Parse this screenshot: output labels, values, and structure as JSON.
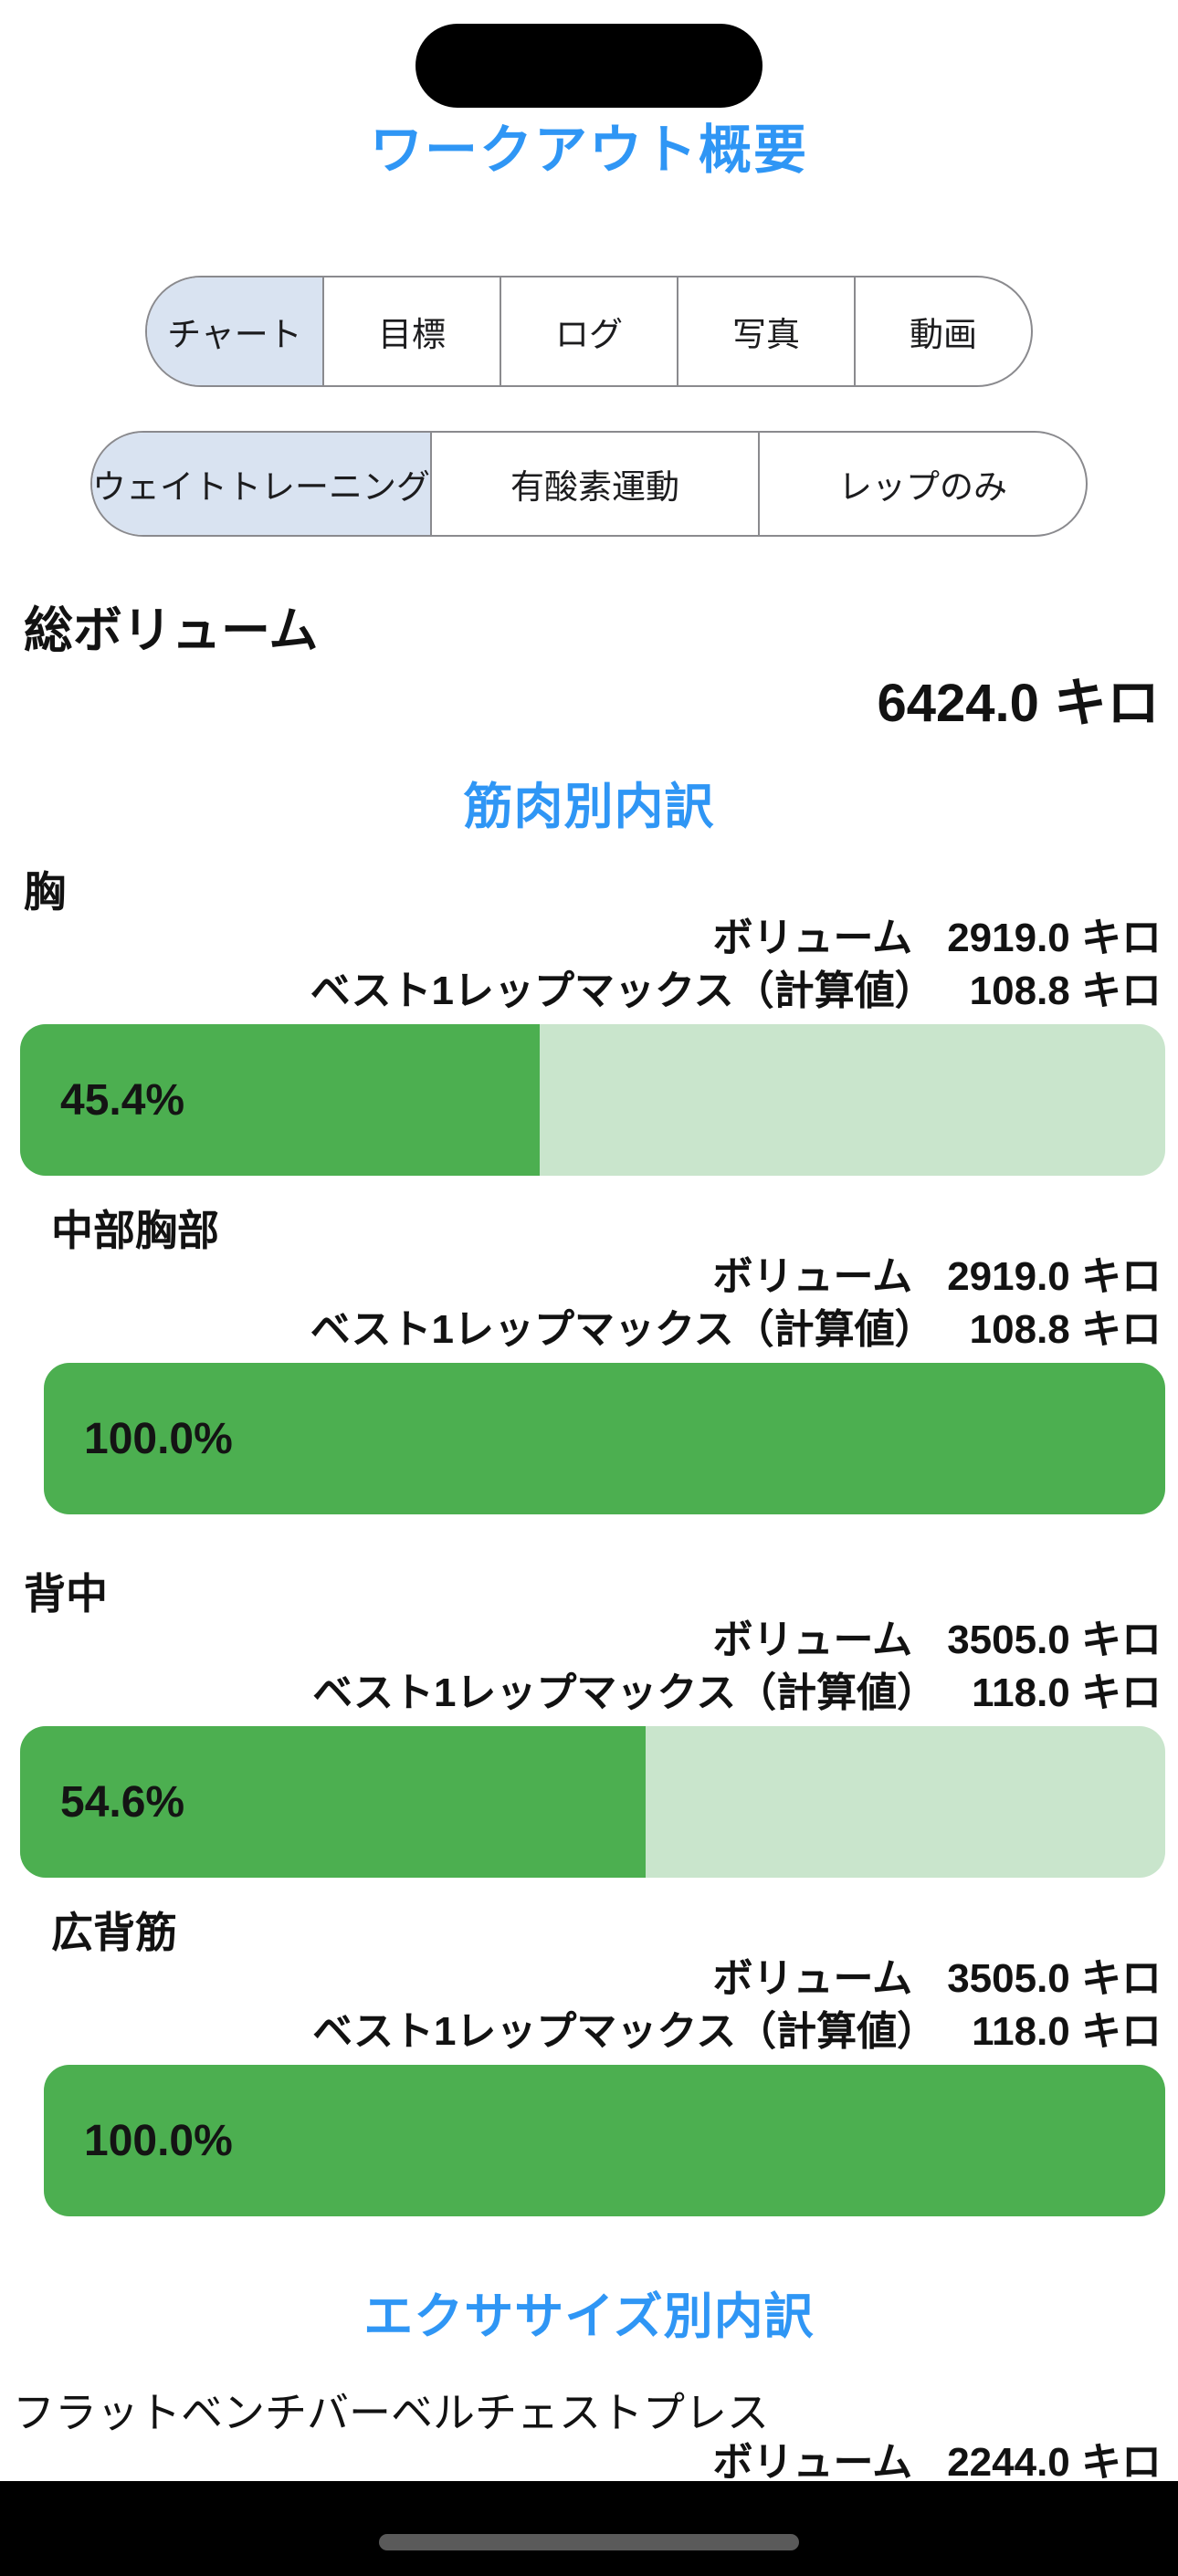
{
  "colors": {
    "accent_blue": "#2F96F5",
    "selected_tab_bg": "#D9E3F1",
    "bar_fill_green": "#4CAF50",
    "bar_track_green": "#C9E5CC",
    "segment_border_gray": "#8A8A8E",
    "home_indicator_gray": "#5A5A5A"
  },
  "header": {
    "title": "ワークアウト概要"
  },
  "tab_bar_primary": {
    "items": [
      {
        "id": "chart",
        "label": "チャート",
        "selected": true
      },
      {
        "id": "goal",
        "label": "目標",
        "selected": false
      },
      {
        "id": "log",
        "label": "ログ",
        "selected": false
      },
      {
        "id": "photo",
        "label": "写真",
        "selected": false
      },
      {
        "id": "video",
        "label": "動画",
        "selected": false
      }
    ]
  },
  "tab_bar_secondary": {
    "items": [
      {
        "id": "weight-training",
        "label": "ウェイトトレーニング",
        "selected": true
      },
      {
        "id": "cardio",
        "label": "有酸素運動",
        "selected": false
      },
      {
        "id": "reps-only",
        "label": "レップのみ",
        "selected": false
      }
    ]
  },
  "total_volume": {
    "label": "総ボリューム",
    "value": "6424.0 キロ"
  },
  "muscle_section": {
    "heading": "筋肉別内訳",
    "volume_label": "ボリューム",
    "orm_label": "ベスト1レップマックス（計算値）",
    "groups": [
      {
        "name": "胸",
        "volume": "2919.0 キロ",
        "orm": "108.8 キロ",
        "percent": "45.4%",
        "percent_value": 45.4,
        "indent": false
      },
      {
        "name": "中部胸部",
        "volume": "2919.0 キロ",
        "orm": "108.8 キロ",
        "percent": "100.0%",
        "percent_value": 100.0,
        "indent": true
      },
      {
        "name": "背中",
        "volume": "3505.0 キロ",
        "orm": "118.0 キロ",
        "percent": "54.6%",
        "percent_value": 54.6,
        "indent": false
      },
      {
        "name": "広背筋",
        "volume": "3505.0 キロ",
        "orm": "118.0 キロ",
        "percent": "100.0%",
        "percent_value": 100.0,
        "indent": true
      }
    ]
  },
  "exercise_section": {
    "heading": "エクササイズ別内訳",
    "volume_label": "ボリューム",
    "items": [
      {
        "name": "フラットベンチバーベルチェストプレス",
        "volume": "2244.0 キロ"
      }
    ]
  }
}
